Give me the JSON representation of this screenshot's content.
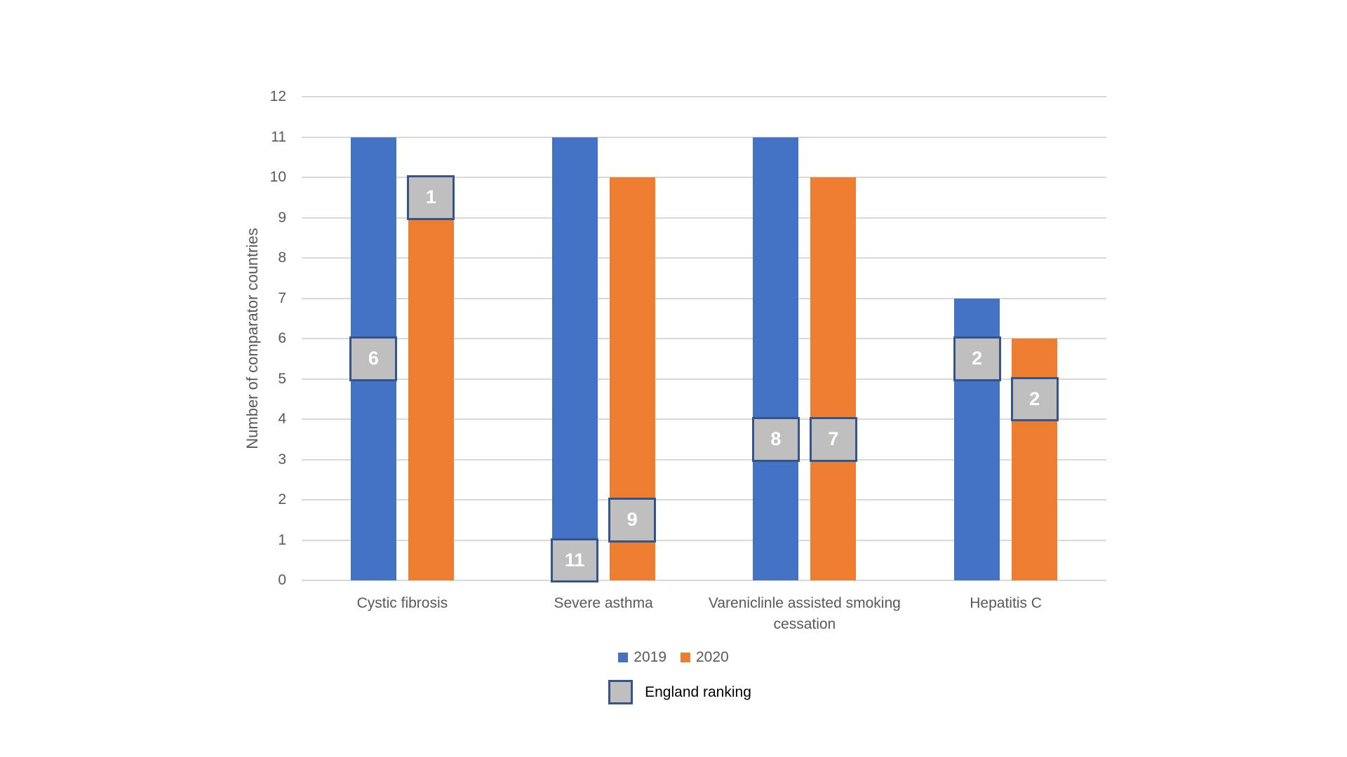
{
  "chart_data": {
    "type": "bar",
    "title": "",
    "xlabel": "",
    "ylabel": "Number of comparator countries",
    "ylim": [
      0,
      12
    ],
    "ytick_step": 1,
    "grid": true,
    "legend_position": "bottom",
    "categories": [
      "Cystic fibrosis",
      "Severe asthma",
      "Vareniclinle assisted smoking cessation",
      "Hepatitis C"
    ],
    "series": [
      {
        "name": "2019",
        "color": "#4472C4",
        "values": [
          11,
          11,
          11,
          7
        ],
        "england_ranking": [
          6,
          11,
          8,
          2
        ]
      },
      {
        "name": "2020",
        "color": "#ED7D31",
        "values": [
          10,
          10,
          10,
          6
        ],
        "england_ranking": [
          1,
          9,
          7,
          2
        ]
      }
    ],
    "ranking_overlay_rule": "box spans one y-unit from (value - rank) to (value - rank + 1) on each bar",
    "ranking_legend": {
      "label": "England ranking"
    }
  },
  "colors": {
    "series_2019": "#4472C4",
    "series_2020": "#ED7D31",
    "gridline": "#d9d9d9",
    "ranking_box_fill": "#bfbfbf",
    "ranking_box_border": "#34558b",
    "axis_text": "#595959",
    "ranking_number_text": "#ffffff",
    "ranking_legend_text": "#000000",
    "background": "#ffffff"
  }
}
